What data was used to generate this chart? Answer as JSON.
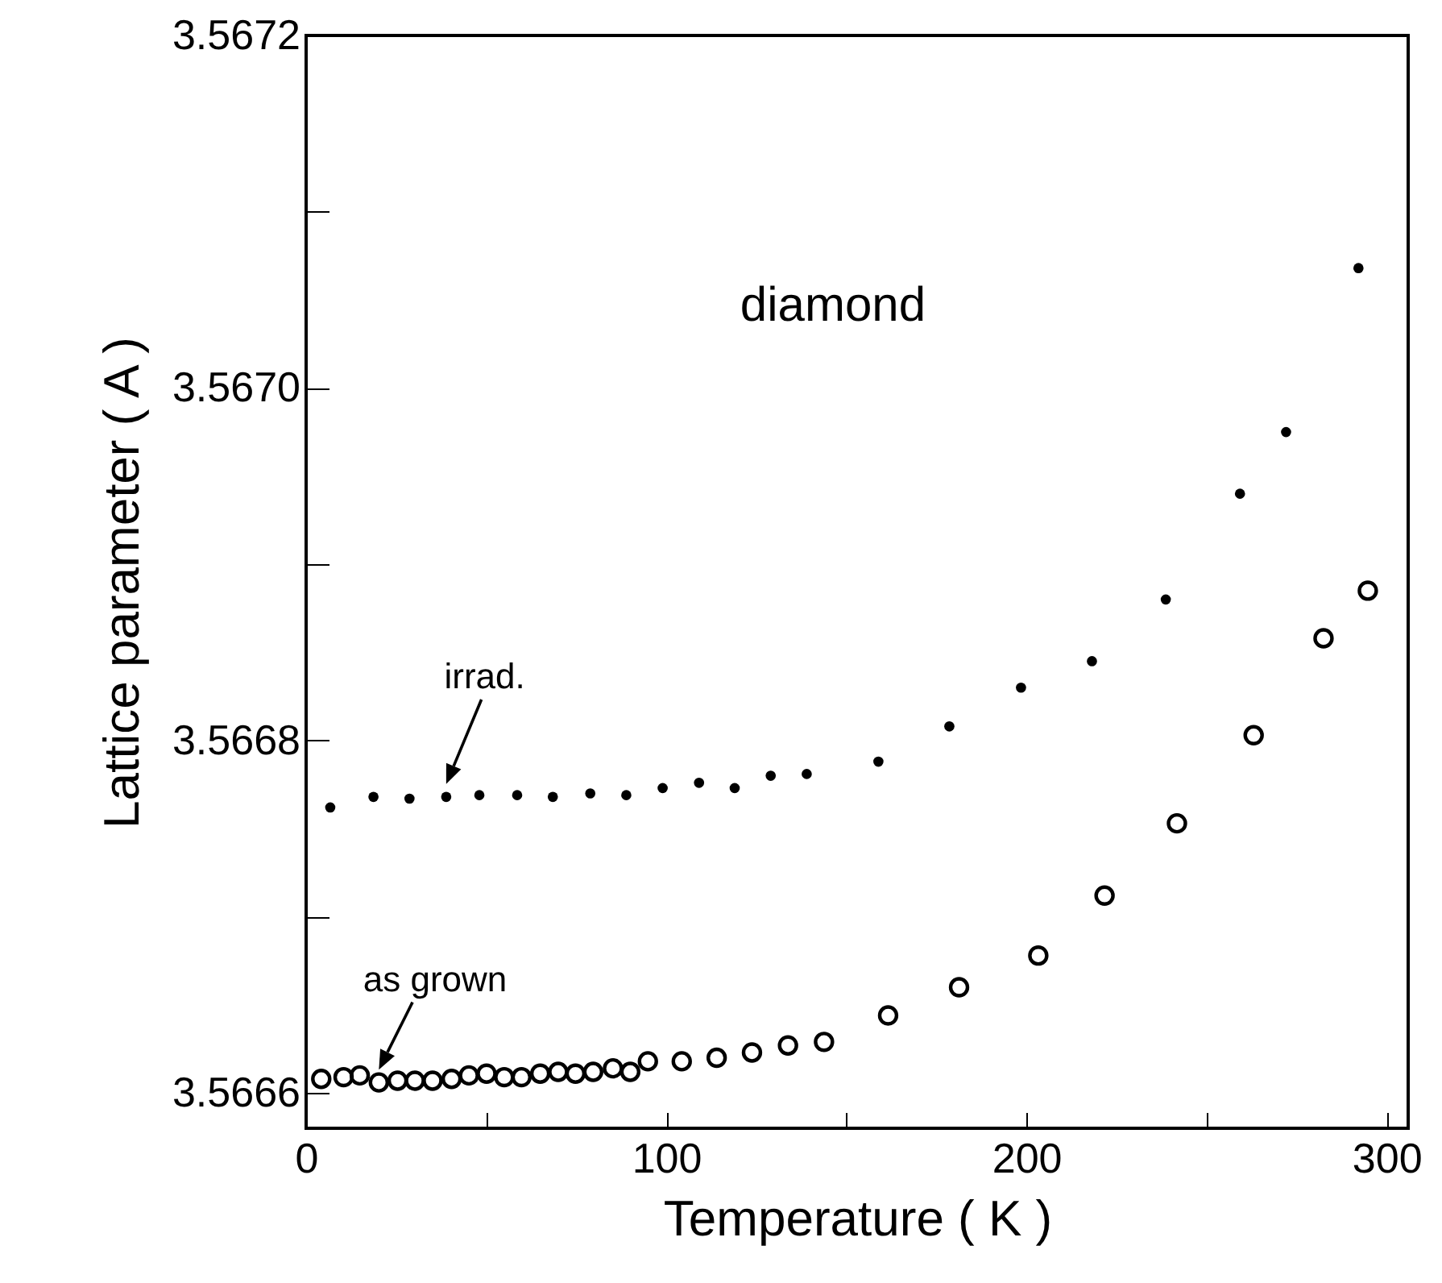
{
  "chart_data": {
    "type": "scatter",
    "xlabel": "Temperature ( K )",
    "ylabel": "Lattice parameter ( A )",
    "xlim": [
      0,
      306
    ],
    "ylim": [
      3.56658,
      3.5672
    ],
    "xticks": [
      0,
      {
        "value": 50,
        "label": null
      },
      100,
      {
        "value": 150,
        "label": null
      },
      200,
      {
        "value": 250,
        "label": null
      },
      300
    ],
    "yticks": [
      3.5666,
      {
        "value": 3.5667,
        "label": null
      },
      3.5668,
      {
        "value": 3.5669,
        "label": null
      },
      {
        "value": 3.567,
        "label": "3.5670"
      },
      {
        "value": 3.5671,
        "label": null
      },
      3.5672
    ],
    "grid": false,
    "marker": "circle",
    "annotations": [
      "diamond",
      "irrad.",
      "as grown"
    ],
    "series": [
      {
        "color": "#000000",
        "x": [
          6.7,
          18.7,
          28.7,
          38.9,
          48.1,
          58.6,
          68.5,
          78.9,
          88.9,
          99.0,
          109.1,
          119.0,
          129.0,
          139.0,
          158.9,
          178.6,
          198.5,
          218.2,
          238.7,
          259.3,
          272.1,
          292.2
        ],
        "values": [
          3.566762,
          3.566768,
          3.566767,
          3.566768,
          3.566769,
          3.566769,
          3.566768,
          3.56677,
          3.566769,
          3.566773,
          3.566776,
          3.566773,
          3.56678,
          3.566781,
          3.566788,
          3.566808,
          3.56683,
          3.566845,
          3.56688,
          3.56694,
          3.566975,
          3.567068
        ]
      },
      {
        "color": "#000000",
        "x": [
          4.2,
          10.4,
          14.9,
          20.2,
          25.4,
          30.2,
          35.1,
          40.4,
          45.2,
          50.1,
          55.0,
          59.8,
          65.0,
          70.0,
          74.8,
          79.7,
          85.2,
          90.0,
          94.9,
          104.3,
          114.0,
          123.8,
          133.8,
          143.8,
          161.6,
          181.3,
          203.3,
          221.7,
          241.8,
          263.1,
          282.5,
          294.8
        ],
        "values": [
          3.566608,
          3.566609,
          3.56661,
          3.566606,
          3.566607,
          3.566607,
          3.566607,
          3.566608,
          3.56661,
          3.566611,
          3.566609,
          3.566609,
          3.566611,
          3.566612,
          3.566611,
          3.566612,
          3.566614,
          3.566612,
          3.566618,
          3.566618,
          3.56662,
          3.566623,
          3.566627,
          3.566629,
          3.566644,
          3.56666,
          3.566678,
          3.566712,
          3.566753,
          3.566803,
          3.566858,
          3.566885
        ]
      }
    ]
  }
}
